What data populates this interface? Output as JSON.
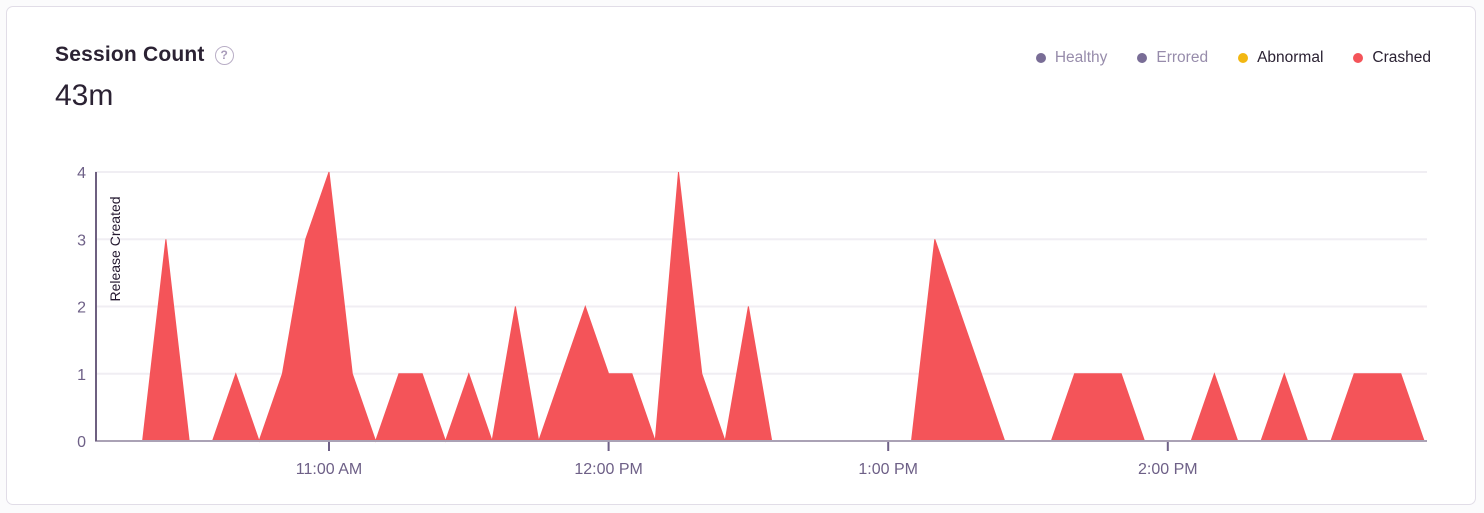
{
  "card": {
    "title": "Session Count",
    "help_icon": "?",
    "total": "43m"
  },
  "legend": {
    "items": [
      {
        "label": "Healthy",
        "color": "#796d96",
        "muted": true
      },
      {
        "label": "Errored",
        "color": "#796d96",
        "muted": true
      },
      {
        "label": "Abnormal",
        "color": "#f2b712",
        "muted": false
      },
      {
        "label": "Crashed",
        "color": "#f45459",
        "muted": false
      }
    ]
  },
  "chart_data": {
    "type": "area",
    "title": "Session Count",
    "xlabel": "",
    "ylabel": "",
    "ylim": [
      0,
      4
    ],
    "y_ticks": [
      0,
      1,
      2,
      3,
      4
    ],
    "grid": true,
    "legend_position": "top-right",
    "x": [
      "10:10 AM",
      "10:15 AM",
      "10:20 AM",
      "10:25 AM",
      "10:30 AM",
      "10:35 AM",
      "10:40 AM",
      "10:45 AM",
      "10:50 AM",
      "10:55 AM",
      "11:00 AM",
      "11:05 AM",
      "11:10 AM",
      "11:15 AM",
      "11:20 AM",
      "11:25 AM",
      "11:30 AM",
      "11:35 AM",
      "11:40 AM",
      "11:45 AM",
      "11:50 AM",
      "11:55 AM",
      "12:00 PM",
      "12:05 PM",
      "12:10 PM",
      "12:15 PM",
      "12:20 PM",
      "12:25 PM",
      "12:30 PM",
      "12:35 PM",
      "12:40 PM",
      "12:45 PM",
      "12:50 PM",
      "12:55 PM",
      "1:00 PM",
      "1:05 PM",
      "1:10 PM",
      "1:15 PM",
      "1:20 PM",
      "1:25 PM",
      "1:30 PM",
      "1:35 PM",
      "1:40 PM",
      "1:45 PM",
      "1:50 PM",
      "1:55 PM",
      "2:00 PM",
      "2:05 PM",
      "2:10 PM",
      "2:15 PM",
      "2:20 PM",
      "2:25 PM",
      "2:30 PM",
      "2:35 PM",
      "2:40 PM",
      "2:45 PM",
      "2:50 PM",
      "2:55 PM"
    ],
    "x_tick_labels": [
      "11:00 AM",
      "12:00 PM",
      "1:00 PM",
      "2:00 PM"
    ],
    "series": [
      {
        "name": "Crashed",
        "color": "#f45459",
        "values": [
          0,
          0,
          0,
          3,
          0,
          0,
          1,
          0,
          1,
          3,
          4,
          1,
          0,
          1,
          1,
          0,
          1,
          0,
          2,
          0,
          1,
          2,
          1,
          1,
          0,
          4,
          1,
          0,
          2,
          0,
          0,
          0,
          0,
          0,
          0,
          0,
          3,
          2,
          1,
          0,
          0,
          0,
          1,
          1,
          1,
          0,
          0,
          0,
          1,
          0,
          0,
          1,
          0,
          0,
          1,
          1,
          1,
          0
        ]
      }
    ],
    "annotation": {
      "label": "Release Created",
      "x": "10:10 AM"
    },
    "colors": {
      "axis_line": "#aaa2b5",
      "tick": "#6e6087",
      "axis_label": "#6e6087",
      "gridline": "#f0eef3",
      "release_line": "#6e6080",
      "release_text": "#23182f"
    }
  }
}
